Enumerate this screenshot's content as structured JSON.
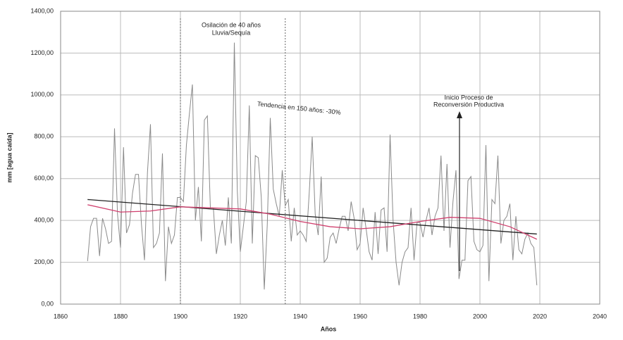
{
  "chart_data": {
    "type": "line",
    "xlabel": "Años",
    "ylabel": "mm [agua caída]",
    "xlim": [
      1860,
      2040
    ],
    "xticks": [
      1860,
      1880,
      1900,
      1920,
      1940,
      1960,
      1980,
      2000,
      2020,
      2040
    ],
    "ylim": [
      0,
      1400
    ],
    "yticks": [
      {
        "value": 0,
        "label": "0,00"
      },
      {
        "value": 200,
        "label": "200,00"
      },
      {
        "value": 400,
        "label": "400,00"
      },
      {
        "value": 600,
        "label": "600,00"
      },
      {
        "value": 800,
        "label": "800,00"
      },
      {
        "value": 1000,
        "label": "1000,00"
      },
      {
        "value": 1200,
        "label": "1200,00"
      },
      {
        "value": 1400,
        "label": "1400,00"
      }
    ],
    "grid": true,
    "reference_lines": [
      1900,
      1935
    ],
    "annotations": [
      "Osilación de 40 años",
      "Lluvia/Sequía",
      "Tendencia en 150 años: -30%",
      "Inicio Proceso de",
      "Reconversión Productiva"
    ],
    "series": [
      {
        "color": "#8a8a8a",
        "x": [
          1869,
          1870,
          1871,
          1872,
          1873,
          1874,
          1875,
          1876,
          1877,
          1878,
          1879,
          1880,
          1881,
          1882,
          1883,
          1884,
          1885,
          1886,
          1887,
          1888,
          1889,
          1890,
          1891,
          1892,
          1893,
          1894,
          1895,
          1896,
          1897,
          1898,
          1899,
          1900,
          1901,
          1902,
          1903,
          1904,
          1905,
          1906,
          1907,
          1908,
          1909,
          1910,
          1911,
          1912,
          1913,
          1914,
          1915,
          1916,
          1917,
          1918,
          1919,
          1920,
          1921,
          1922,
          1923,
          1924,
          1925,
          1926,
          1927,
          1928,
          1929,
          1930,
          1931,
          1932,
          1933,
          1934,
          1935,
          1936,
          1937,
          1938,
          1939,
          1940,
          1941,
          1942,
          1943,
          1944,
          1945,
          1946,
          1947,
          1948,
          1949,
          1950,
          1951,
          1952,
          1953,
          1954,
          1955,
          1956,
          1957,
          1958,
          1959,
          1960,
          1961,
          1962,
          1963,
          1964,
          1965,
          1966,
          1967,
          1968,
          1969,
          1970,
          1971,
          1972,
          1973,
          1974,
          1975,
          1976,
          1977,
          1978,
          1979,
          1980,
          1981,
          1982,
          1983,
          1984,
          1985,
          1986,
          1987,
          1988,
          1989,
          1990,
          1991,
          1992,
          1993,
          1994,
          1995,
          1996,
          1997,
          1998,
          1999,
          2000,
          2001,
          2002,
          2003,
          2004,
          2005,
          2006,
          2007,
          2008,
          2009,
          2010,
          2011,
          2012,
          2013,
          2014,
          2015,
          2016,
          2017,
          2018,
          2019
        ],
        "values": [
          205,
          370,
          410,
          410,
          230,
          410,
          360,
          290,
          300,
          840,
          430,
          270,
          750,
          340,
          380,
          530,
          620,
          620,
          380,
          210,
          630,
          860,
          270,
          290,
          340,
          720,
          110,
          370,
          290,
          330,
          510,
          510,
          490,
          760,
          910,
          1050,
          400,
          560,
          300,
          880,
          900,
          460,
          460,
          240,
          330,
          400,
          280,
          510,
          290,
          1250,
          540,
          250,
          370,
          490,
          950,
          290,
          710,
          700,
          510,
          70,
          380,
          890,
          550,
          480,
          420,
          640,
          470,
          500,
          300,
          460,
          330,
          350,
          330,
          300,
          530,
          800,
          430,
          330,
          610,
          200,
          220,
          320,
          340,
          290,
          360,
          420,
          420,
          350,
          490,
          410,
          260,
          290,
          460,
          360,
          250,
          210,
          440,
          240,
          450,
          460,
          250,
          810,
          400,
          200,
          90,
          200,
          250,
          270,
          460,
          210,
          390,
          390,
          320,
          400,
          460,
          330,
          420,
          460,
          710,
          350,
          670,
          270,
          490,
          640,
          120,
          210,
          210,
          590,
          610,
          300,
          260,
          250,
          280,
          760,
          110,
          500,
          480,
          710,
          290,
          400,
          420,
          480,
          210,
          420,
          260,
          240,
          310,
          340,
          290,
          270,
          90
        ]
      },
      {
        "color": "#222222",
        "x": [
          1869,
          2019
        ],
        "values": [
          500,
          335
        ]
      },
      {
        "color": "#d0406e",
        "x": [
          1869,
          1880,
          1890,
          1900,
          1910,
          1920,
          1930,
          1940,
          1950,
          1960,
          1970,
          1980,
          1990,
          2000,
          2010,
          2019
        ],
        "values": [
          475,
          440,
          445,
          465,
          460,
          455,
          430,
          395,
          370,
          360,
          370,
          395,
          415,
          410,
          370,
          310
        ]
      }
    ]
  }
}
